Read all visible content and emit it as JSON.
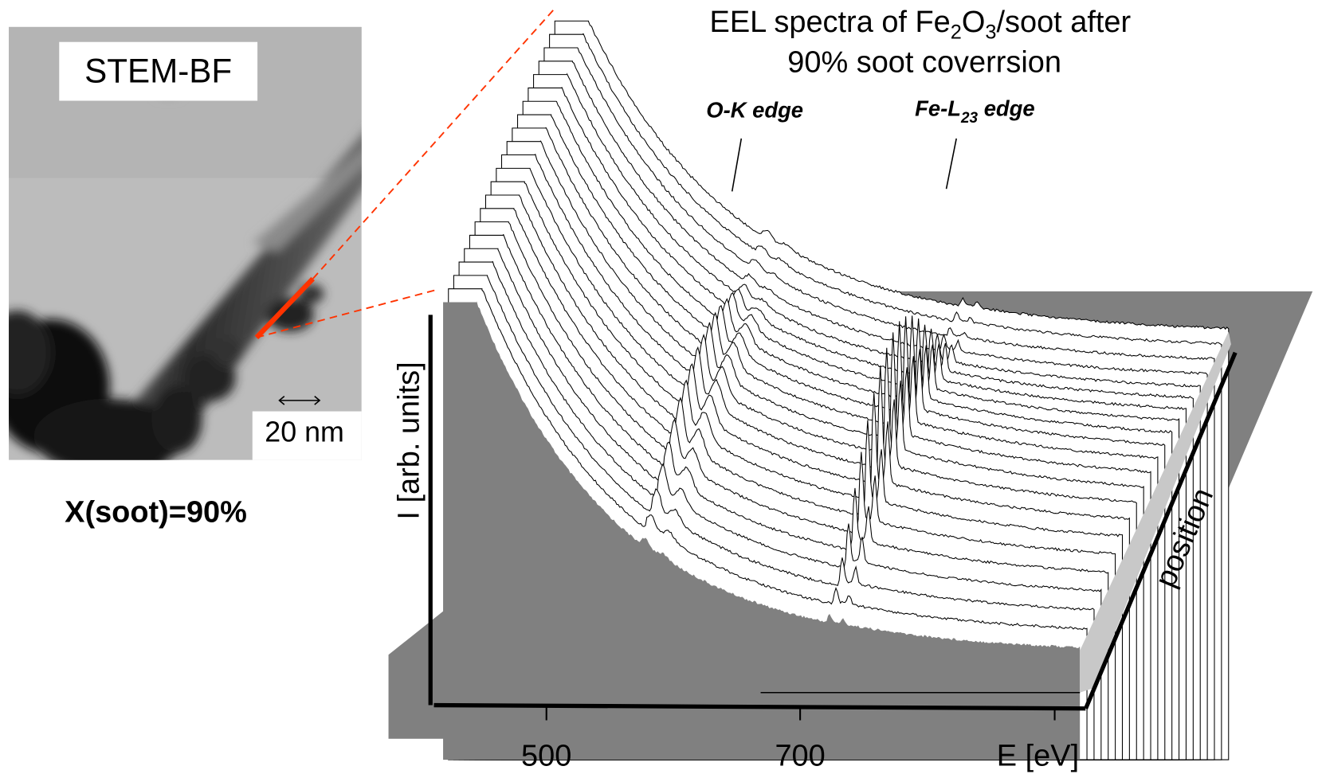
{
  "image_panel": {
    "label": "STEM-BF",
    "scale_bar": "20 nm",
    "caption": "X(soot)=90%"
  },
  "chart_data": {
    "type": "waterfall",
    "title": {
      "line1": [
        "EEL spectra of Fe",
        "2",
        "O",
        "3",
        "/soot after"
      ],
      "line2": "90% soot coverrsion"
    },
    "annotations": {
      "o_edge": "O-K edge",
      "fe_edge": [
        "Fe-L",
        "23",
        " edge"
      ]
    },
    "x_label": "E [eV]",
    "y_label": "I [arb. units]",
    "z_label": "position",
    "xlim": [
      410,
      925
    ],
    "xticks": [
      500,
      700
    ]
  }
}
